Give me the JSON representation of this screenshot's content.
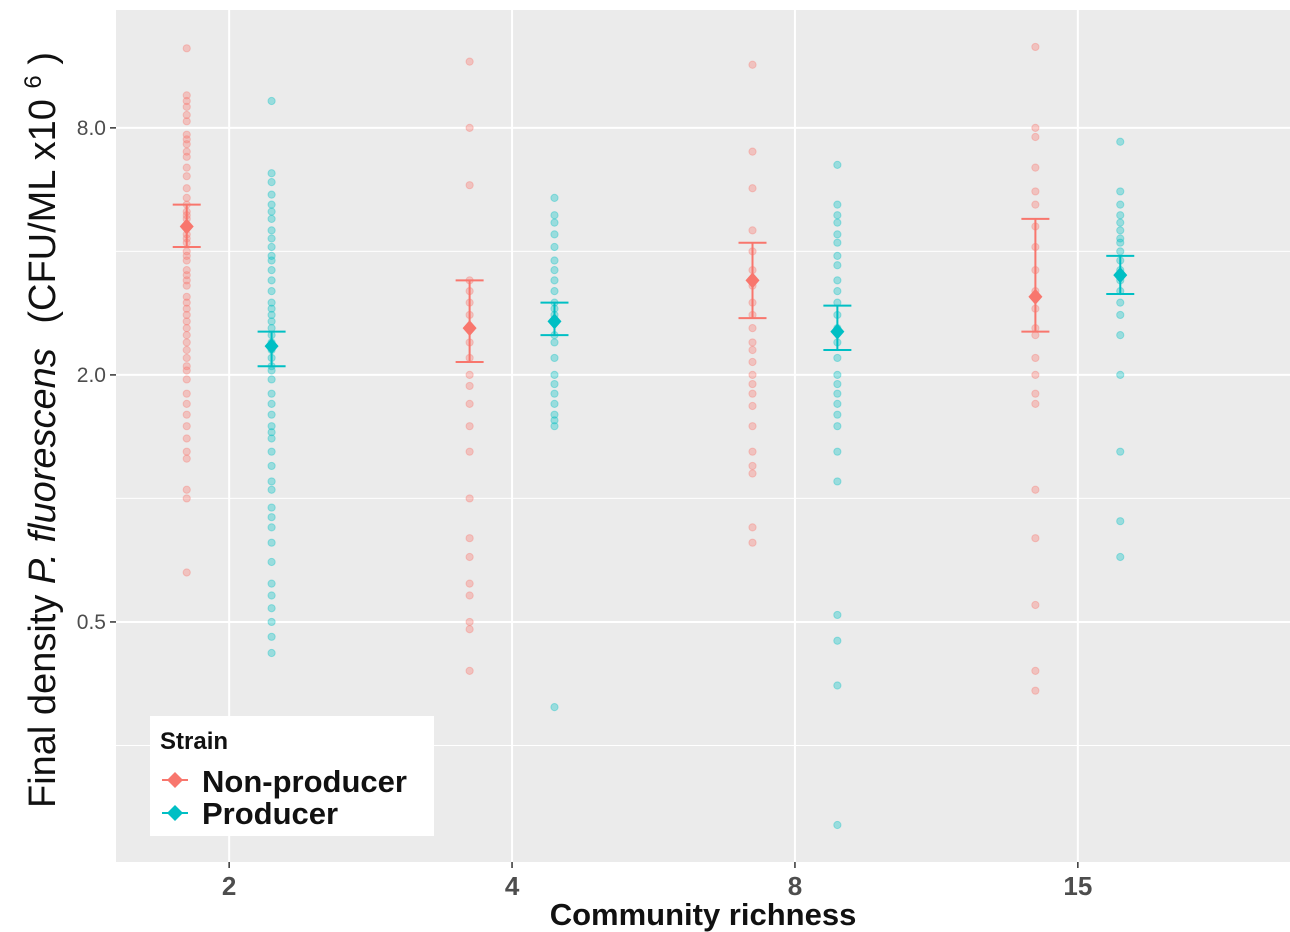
{
  "chart_data": {
    "type": "scatter",
    "xlabel": "Community richness",
    "ylabel_parts": {
      "prefix": "Final density ",
      "italic": "P. fluorescens",
      "units_pre": "(CFU/ML x10",
      "units_sup": "6",
      "units_post": ")"
    },
    "y_scale": "log2",
    "ylim": [
      0.13,
      15.5
    ],
    "y_ticks": [
      {
        "value": 8.0,
        "label": "8.0"
      },
      {
        "value": 2.0,
        "label": "2.0"
      },
      {
        "value": 0.5,
        "label": "0.5"
      }
    ],
    "y_minor": [
      16,
      4,
      1,
      0.25
    ],
    "categories": [
      "2",
      "4",
      "8",
      "15"
    ],
    "grid": true,
    "legend": {
      "title": "Strain",
      "position": "bottom-left",
      "entries": [
        {
          "name": "Non-producer",
          "color": "#F8766D"
        },
        {
          "name": "Producer",
          "color": "#00BFC4"
        }
      ]
    },
    "series": [
      {
        "name": "Non-producer",
        "color": "#F8766D",
        "offset": -0.15,
        "points": {
          "2": [
            12.5,
            9.6,
            9.3,
            9.0,
            8.6,
            8.3,
            7.7,
            7.5,
            7.3,
            7.0,
            6.8,
            6.4,
            6.1,
            5.7,
            5.4,
            5.2,
            5.0,
            4.9,
            4.8,
            4.6,
            4.4,
            4.3,
            4.2,
            4.0,
            3.9,
            3.8,
            3.6,
            3.5,
            3.4,
            3.3,
            3.1,
            3.0,
            2.9,
            2.8,
            2.7,
            2.6,
            2.5,
            2.4,
            2.3,
            2.2,
            2.1,
            2.05,
            1.95,
            1.8,
            1.7,
            1.6,
            1.5,
            1.4,
            1.3,
            1.25,
            1.05,
            1.0,
            0.66
          ],
          "4": [
            11.6,
            8.0,
            5.8,
            3.4,
            3.2,
            3.0,
            2.8,
            2.6,
            2.4,
            2.2,
            2.0,
            1.88,
            1.7,
            1.5,
            1.3,
            1.0,
            0.8,
            0.72,
            0.62,
            0.58,
            0.5,
            0.48,
            0.38
          ],
          "8": [
            11.4,
            7.0,
            5.7,
            4.5,
            4.0,
            3.6,
            3.3,
            3.0,
            2.8,
            2.6,
            2.4,
            2.3,
            2.15,
            2.0,
            1.9,
            1.8,
            1.68,
            1.5,
            1.3,
            1.2,
            1.15,
            0.85,
            0.78
          ],
          "15": [
            12.6,
            8.0,
            7.6,
            6.4,
            5.6,
            5.2,
            4.6,
            4.1,
            3.6,
            3.2,
            2.9,
            2.6,
            2.5,
            2.2,
            2.0,
            1.8,
            1.7,
            1.05,
            0.8,
            0.55,
            0.38,
            0.34
          ]
        },
        "means": {
          "2": 4.6,
          "4": 2.6,
          "8": 3.4,
          "15": 3.1
        },
        "error_low": {
          "2": 4.1,
          "4": 2.15,
          "8": 2.75,
          "15": 2.55
        },
        "error_high": {
          "2": 5.2,
          "4": 3.4,
          "8": 4.2,
          "15": 4.8
        }
      },
      {
        "name": "Producer",
        "color": "#00BFC4",
        "offset": 0.15,
        "points": {
          "2": [
            9.3,
            6.2,
            5.9,
            5.5,
            5.2,
            5.0,
            4.8,
            4.5,
            4.3,
            4.1,
            3.9,
            3.8,
            3.6,
            3.4,
            3.2,
            3.0,
            2.9,
            2.8,
            2.7,
            2.6,
            2.5,
            2.4,
            2.3,
            2.2,
            2.1,
            2.05,
            1.95,
            1.8,
            1.7,
            1.6,
            1.5,
            1.45,
            1.4,
            1.3,
            1.2,
            1.1,
            1.05,
            0.95,
            0.9,
            0.85,
            0.78,
            0.7,
            0.62,
            0.58,
            0.54,
            0.5,
            0.46,
            0.42,
            0.27
          ],
          "4": [
            5.4,
            4.9,
            4.7,
            4.4,
            4.1,
            3.8,
            3.6,
            3.4,
            3.2,
            3.0,
            2.9,
            2.8,
            2.7,
            2.5,
            2.4,
            2.2,
            2.0,
            1.9,
            1.8,
            1.7,
            1.6,
            1.55,
            1.5,
            0.31
          ],
          "8": [
            6.5,
            5.2,
            4.9,
            4.7,
            4.4,
            4.2,
            3.9,
            3.7,
            3.4,
            3.2,
            3.0,
            2.8,
            2.6,
            2.4,
            2.2,
            2.0,
            1.9,
            1.8,
            1.7,
            1.6,
            1.5,
            1.3,
            1.1,
            0.52,
            0.45,
            0.35,
            0.16
          ],
          "15": [
            7.4,
            5.6,
            5.2,
            4.9,
            4.7,
            4.5,
            4.3,
            4.2,
            4.0,
            3.8,
            3.6,
            3.4,
            3.2,
            3.0,
            2.8,
            2.5,
            2.0,
            1.3,
            0.88,
            0.72
          ]
        },
        "means": {
          "2": 2.35,
          "4": 2.7,
          "8": 2.55,
          "15": 3.5
        },
        "error_low": {
          "2": 2.1,
          "4": 2.5,
          "8": 2.3,
          "15": 3.15
        },
        "error_high": {
          "2": 2.55,
          "4": 3.0,
          "8": 2.95,
          "15": 3.9
        }
      }
    ]
  }
}
